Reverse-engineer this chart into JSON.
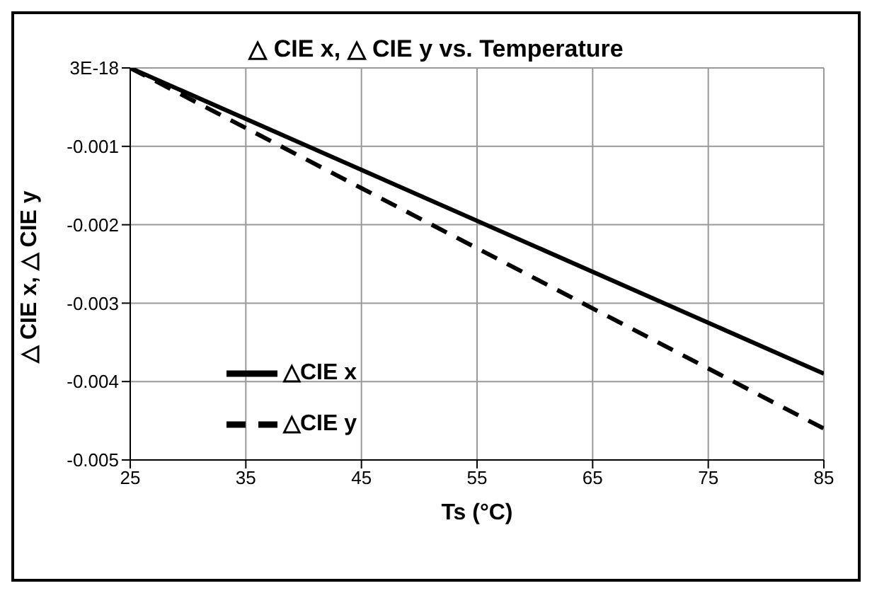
{
  "chart_data": {
    "type": "line",
    "title": "△ CIE x,  △ CIE y vs. Temperature",
    "xlabel": "Ts (°C)",
    "ylabel": "△ CIE x,  △ CIE y",
    "x": [
      25,
      85
    ],
    "series": [
      {
        "name": "△CIE x",
        "color": "#000000",
        "values": [
          0,
          -0.0039
        ],
        "line_style": "solid"
      },
      {
        "name": "△CIE y",
        "color": "#000000",
        "values": [
          0,
          -0.0046
        ],
        "line_style": "dashed"
      }
    ],
    "xlim": [
      25,
      85
    ],
    "xticks": [
      25,
      35,
      45,
      55,
      65,
      75,
      85
    ],
    "ylim": [
      -0.005,
      0
    ],
    "yticks": [
      -0.005,
      -0.004,
      -0.003,
      -0.002,
      -0.001,
      {
        "value": 0,
        "label": "3E-18"
      }
    ],
    "grid": true,
    "legend": "bottom left",
    "marker": "none"
  }
}
